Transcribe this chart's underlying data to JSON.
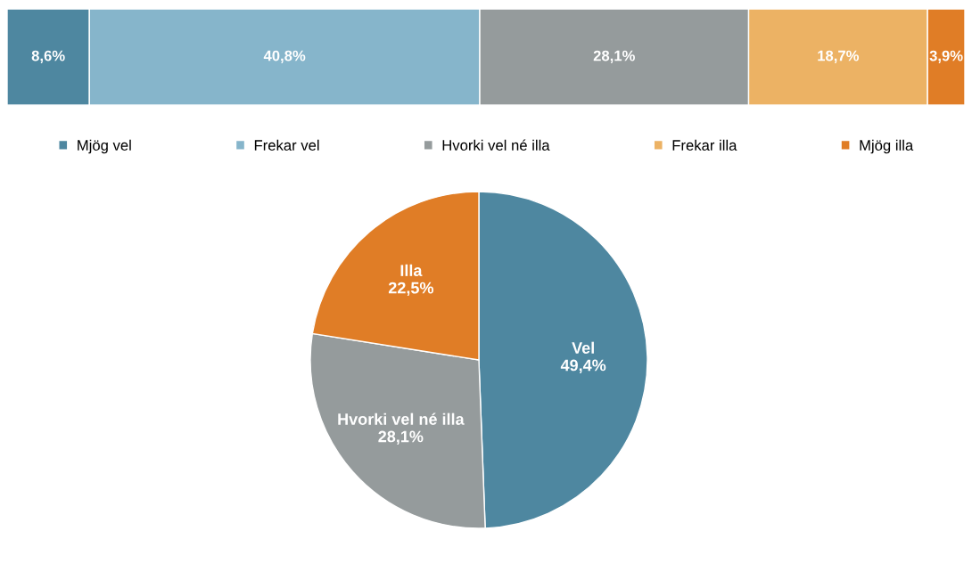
{
  "chart_data": [
    {
      "type": "bar",
      "orientation": "horizontal",
      "stacked": true,
      "categories": [
        null
      ],
      "xlim": [
        0,
        100.1
      ],
      "legend": "bottom",
      "series": [
        {
          "name": "Mjög vel",
          "color": "#4e87a0",
          "values": [
            8.6
          ],
          "value_labels": [
            "8,6%"
          ]
        },
        {
          "name": "Frekar vel",
          "color": "#86b5cb",
          "values": [
            40.8
          ],
          "value_labels": [
            "40,8%"
          ]
        },
        {
          "name": "Hvorki vel né illa",
          "color": "#959b9c",
          "values": [
            28.1
          ],
          "value_labels": [
            "28,1%"
          ]
        },
        {
          "name": "Frekar illa",
          "color": "#ecb264",
          "values": [
            18.7
          ],
          "value_labels": [
            "18,7%"
          ]
        },
        {
          "name": "Mjög illa",
          "color": "#e07d26",
          "values": [
            3.9
          ],
          "value_labels": [
            "3,9%"
          ]
        }
      ]
    },
    {
      "type": "pie",
      "categories": [
        "Vel",
        "Hvorki vel né illa",
        "Illa"
      ],
      "values": [
        49.4,
        28.1,
        22.5
      ],
      "colors": [
        "#4e87a0",
        "#959b9c",
        "#e07d26"
      ],
      "value_labels": [
        "49,4%",
        "28,1%",
        "22,5%"
      ],
      "legend": false
    }
  ]
}
